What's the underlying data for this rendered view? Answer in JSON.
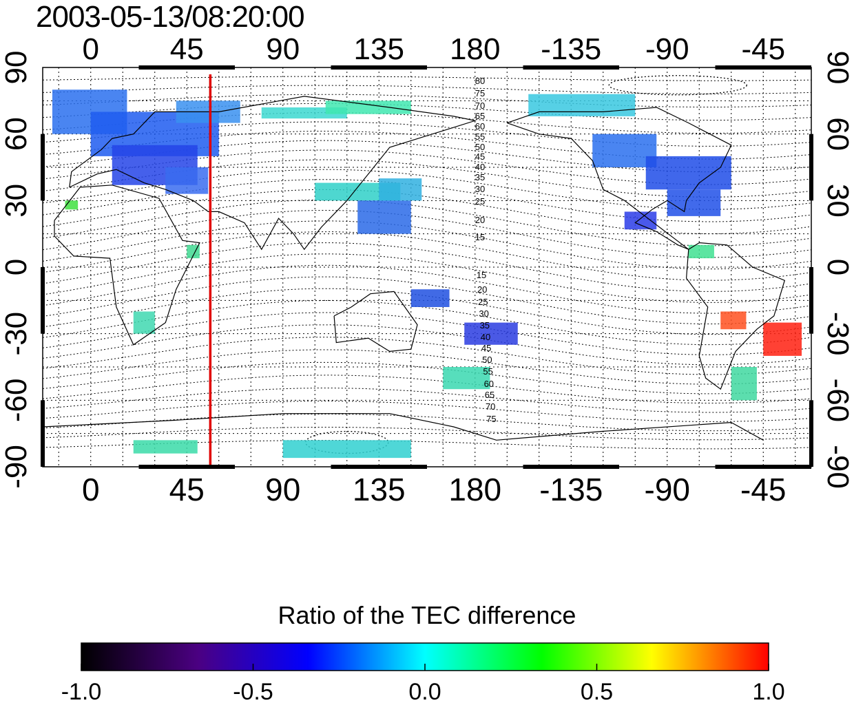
{
  "timestamp": "2003-05-13/08:20:00",
  "colorbar": {
    "title": "Ratio of the TEC difference",
    "ticks": [
      "-1.0",
      "-0.5",
      "0.0",
      "0.5",
      "1.0"
    ],
    "range": [
      -1.0,
      1.0
    ],
    "colors": [
      "#000000",
      "#4b0082",
      "#0000ff",
      "#00ffff",
      "#00ff00",
      "#ffff00",
      "#ff0000"
    ]
  },
  "map": {
    "projection": "cylindrical, central longitude 0 shifted: x from -20 to 340",
    "x_ticks_top": [
      "0",
      "45",
      "90",
      "135",
      "180",
      "-135",
      "-90",
      "-45"
    ],
    "x_ticks_bottom": [
      "0",
      "45",
      "90",
      "135",
      "180",
      "-135",
      "-90",
      "-45"
    ],
    "y_ticks_left": [
      "90",
      "60",
      "30",
      "0",
      "-30",
      "-60",
      "-90"
    ],
    "y_ticks_right": [
      "90",
      "60",
      "30",
      "0",
      "-30",
      "-60",
      "-90"
    ],
    "grid": true,
    "meridian_line": {
      "longitude": 56,
      "color": "#e00000"
    },
    "contour_labels_north": [
      "80",
      "75",
      "70",
      "65",
      "60",
      "55",
      "50",
      "45",
      "40",
      "35",
      "30",
      "25",
      "20",
      "15"
    ],
    "contour_labels_south": [
      "15",
      "20",
      "25",
      "30",
      "35",
      "40",
      "45",
      "50",
      "55",
      "60",
      "65",
      "70",
      "75"
    ]
  }
}
